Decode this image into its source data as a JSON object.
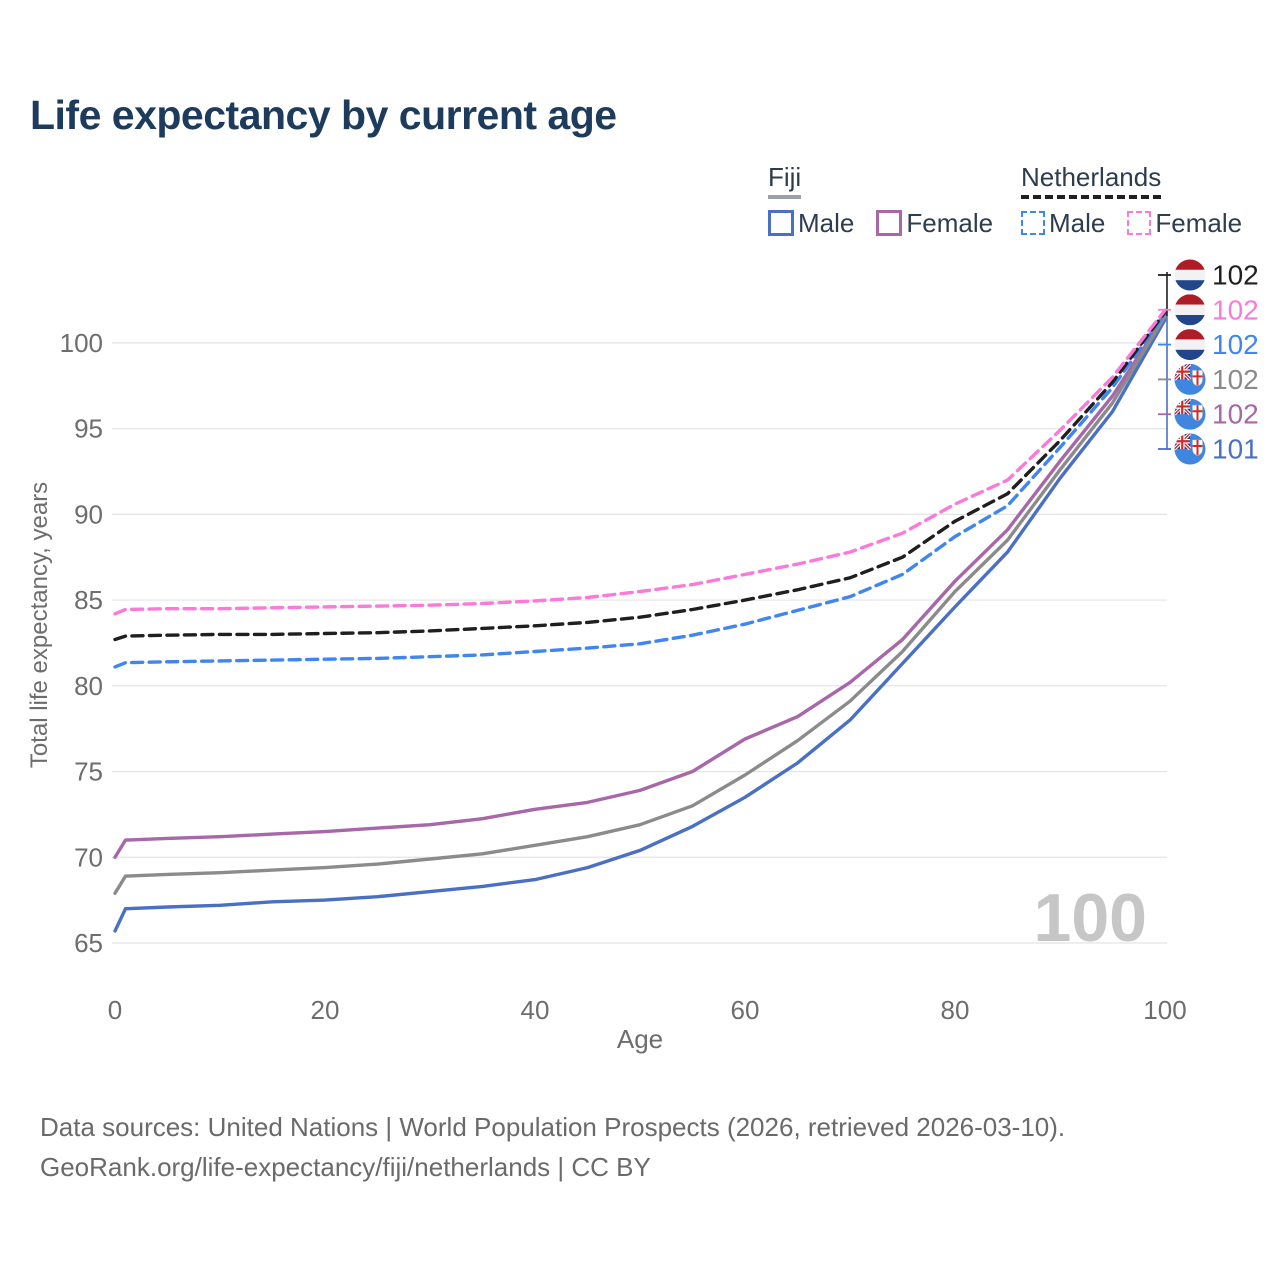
{
  "title": "Life expectancy by current age",
  "legend": {
    "groups": [
      {
        "label": "Fiji",
        "line_style": "solid",
        "underline_color": "#9aa0a6",
        "items": [
          {
            "label": "Male",
            "color": "#4a70c4"
          },
          {
            "label": "Female",
            "color": "#a767a9"
          }
        ]
      },
      {
        "label": "Netherlands",
        "line_style": "dashed",
        "underline_color": "#1f1f1f",
        "items": [
          {
            "label": "Male",
            "color": "#3f86f0"
          },
          {
            "label": "Female",
            "color": "#fb7ad9"
          }
        ]
      }
    ]
  },
  "watermark_age_counter": "100",
  "footer": {
    "line1": "Data sources: United Nations | World Population Prospects (2026, retrieved 2026-03-10).",
    "line2": "GeoRank.org/life-expectancy/fiji/netherlands | CC BY"
  },
  "chart_data": {
    "type": "line",
    "title": "Life expectancy by current age",
    "xlabel": "Age",
    "ylabel": "Total life expectancy, years",
    "xlim": [
      0,
      100
    ],
    "ylim": [
      64.5,
      102.5
    ],
    "x_ticks": [
      0,
      20,
      40,
      60,
      80,
      100
    ],
    "y_ticks": [
      65,
      70,
      75,
      80,
      85,
      90,
      95,
      100
    ],
    "grid": "horizontal",
    "legend_position": "top-right",
    "x": [
      0,
      1,
      5,
      10,
      15,
      20,
      25,
      30,
      35,
      40,
      45,
      50,
      55,
      60,
      65,
      70,
      75,
      80,
      85,
      90,
      95,
      100
    ],
    "series": [
      {
        "name": "Netherlands All",
        "flag": "nl",
        "color": "#1f1f1f",
        "dash": true,
        "end_label": "102",
        "values": [
          82.7,
          82.9,
          82.95,
          83.0,
          83.0,
          83.05,
          83.1,
          83.2,
          83.35,
          83.5,
          83.7,
          84.0,
          84.45,
          85.0,
          85.6,
          86.3,
          87.5,
          89.6,
          91.2,
          94.3,
          97.7,
          101.8
        ]
      },
      {
        "name": "Netherlands Female",
        "flag": "nl",
        "color": "#fb7ad9",
        "dash": true,
        "end_label": "102",
        "values": [
          84.2,
          84.45,
          84.5,
          84.5,
          84.55,
          84.6,
          84.65,
          84.7,
          84.8,
          84.95,
          85.15,
          85.5,
          85.9,
          86.5,
          87.1,
          87.8,
          88.9,
          90.6,
          92.0,
          94.9,
          98.0,
          101.9
        ]
      },
      {
        "name": "Netherlands Male",
        "flag": "nl",
        "color": "#3f86f0",
        "dash": true,
        "end_label": "102",
        "values": [
          81.1,
          81.35,
          81.4,
          81.45,
          81.5,
          81.55,
          81.6,
          81.7,
          81.8,
          82.0,
          82.2,
          82.45,
          82.95,
          83.6,
          84.4,
          85.2,
          86.5,
          88.7,
          90.5,
          93.9,
          97.4,
          101.7
        ]
      },
      {
        "name": "Fiji All",
        "flag": "fj",
        "color": "#8b8b8b",
        "dash": false,
        "end_label": "102",
        "values": [
          67.9,
          68.9,
          69.0,
          69.1,
          69.25,
          69.4,
          69.6,
          69.9,
          70.2,
          70.7,
          71.2,
          71.9,
          73.0,
          74.8,
          76.8,
          79.1,
          82.0,
          85.5,
          88.5,
          92.6,
          96.5,
          101.55
        ]
      },
      {
        "name": "Fiji Female",
        "flag": "fj",
        "color": "#a767a9",
        "dash": false,
        "end_label": "102",
        "values": [
          70.0,
          71.0,
          71.1,
          71.2,
          71.35,
          71.5,
          71.7,
          71.9,
          72.25,
          72.8,
          73.2,
          73.9,
          75.0,
          76.9,
          78.2,
          80.2,
          82.7,
          86.1,
          89.1,
          93.1,
          96.9,
          101.6
        ]
      },
      {
        "name": "Fiji Male",
        "flag": "fj",
        "color": "#4a70c4",
        "dash": false,
        "end_label": "101",
        "values": [
          65.7,
          67.0,
          67.1,
          67.2,
          67.4,
          67.5,
          67.7,
          68.0,
          68.3,
          68.7,
          69.4,
          70.4,
          71.8,
          73.5,
          75.5,
          78.0,
          81.3,
          84.6,
          87.8,
          92.1,
          96.0,
          101.35
        ]
      }
    ]
  }
}
